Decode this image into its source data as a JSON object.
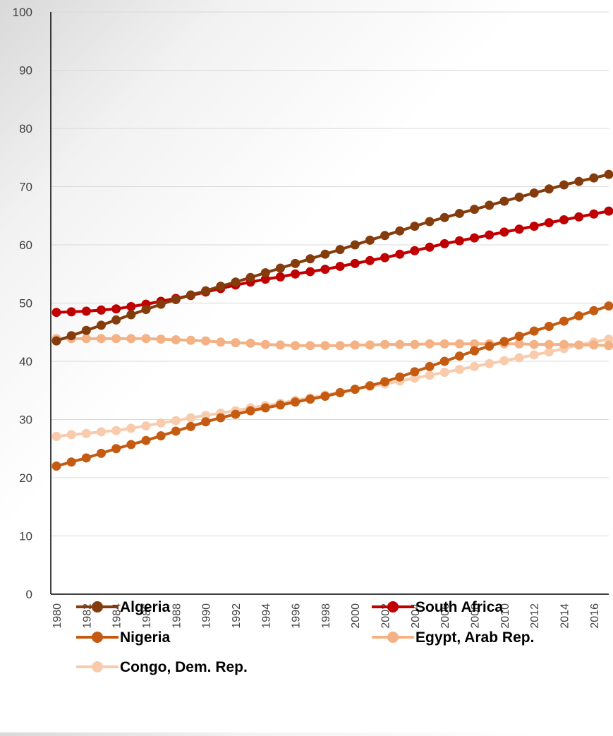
{
  "chart_data": {
    "type": "line",
    "title": "",
    "xlabel": "",
    "ylabel": "",
    "ylim": [
      0,
      100
    ],
    "yticks": [
      0,
      10,
      20,
      30,
      40,
      50,
      60,
      70,
      80,
      90,
      100
    ],
    "xlim": [
      1980,
      2017
    ],
    "xtick_labels": [
      "1980",
      "1982",
      "1984",
      "1986",
      "1988",
      "1990",
      "1992",
      "1994",
      "1996",
      "1998",
      "2000",
      "2002",
      "2004",
      "2006",
      "2008",
      "2010",
      "2012",
      "2014",
      "2016"
    ],
    "grid": true,
    "legend_position": "bottom",
    "x": [
      1980,
      1981,
      1982,
      1983,
      1984,
      1985,
      1986,
      1987,
      1988,
      1989,
      1990,
      1991,
      1992,
      1993,
      1994,
      1995,
      1996,
      1997,
      1998,
      1999,
      2000,
      2001,
      2002,
      2003,
      2004,
      2005,
      2006,
      2007,
      2008,
      2009,
      2010,
      2011,
      2012,
      2013,
      2014,
      2015,
      2016,
      2017
    ],
    "series": [
      {
        "name": "Algeria",
        "color": "#843C0C",
        "values": [
          43.5,
          44.4,
          45.3,
          46.2,
          47.1,
          48.0,
          48.9,
          49.8,
          50.6,
          51.4,
          52.1,
          52.9,
          53.6,
          54.4,
          55.2,
          56.0,
          56.8,
          57.6,
          58.4,
          59.2,
          60.0,
          60.8,
          61.6,
          62.4,
          63.2,
          64.0,
          64.7,
          65.4,
          66.1,
          66.8,
          67.5,
          68.2,
          68.9,
          69.6,
          70.3,
          70.9,
          71.5,
          72.1
        ]
      },
      {
        "name": "South Africa",
        "color": "#C00000",
        "values": [
          48.4,
          48.5,
          48.6,
          48.8,
          49.0,
          49.4,
          49.8,
          50.3,
          50.8,
          51.3,
          51.9,
          52.5,
          53.1,
          53.6,
          54.1,
          54.5,
          55.0,
          55.4,
          55.8,
          56.3,
          56.8,
          57.3,
          57.8,
          58.4,
          59.0,
          59.6,
          60.2,
          60.7,
          61.2,
          61.7,
          62.2,
          62.7,
          63.2,
          63.8,
          64.3,
          64.8,
          65.3,
          65.8
        ]
      },
      {
        "name": "Nigeria",
        "color": "#C55A11",
        "values": [
          22.0,
          22.7,
          23.4,
          24.2,
          25.0,
          25.7,
          26.4,
          27.2,
          28.0,
          28.8,
          29.6,
          30.3,
          30.9,
          31.5,
          32.0,
          32.5,
          33.0,
          33.5,
          34.0,
          34.6,
          35.2,
          35.8,
          36.5,
          37.3,
          38.2,
          39.1,
          40.0,
          40.9,
          41.8,
          42.6,
          43.4,
          44.3,
          45.2,
          46.0,
          46.9,
          47.8,
          48.7,
          49.5
        ]
      },
      {
        "name": "Egypt, Arab Rep.",
        "color": "#F4B183",
        "values": [
          43.9,
          43.9,
          43.9,
          43.9,
          43.9,
          43.9,
          43.9,
          43.8,
          43.7,
          43.6,
          43.5,
          43.3,
          43.2,
          43.1,
          42.9,
          42.8,
          42.7,
          42.7,
          42.7,
          42.7,
          42.8,
          42.8,
          42.9,
          42.9,
          42.9,
          43.0,
          43.0,
          43.0,
          43.0,
          43.0,
          43.0,
          43.0,
          42.9,
          42.9,
          42.9,
          42.8,
          42.8,
          42.7
        ]
      },
      {
        "name": "Congo, Dem. Rep.",
        "color": "#F8CBAD",
        "values": [
          27.1,
          27.4,
          27.6,
          27.9,
          28.1,
          28.5,
          28.9,
          29.4,
          29.8,
          30.3,
          30.7,
          31.1,
          31.5,
          32.0,
          32.4,
          32.8,
          33.3,
          33.7,
          34.2,
          34.7,
          35.2,
          35.7,
          36.1,
          36.6,
          37.1,
          37.6,
          38.1,
          38.6,
          39.1,
          39.6,
          40.1,
          40.6,
          41.1,
          41.6,
          42.2,
          42.8,
          43.3,
          43.8
        ]
      }
    ]
  }
}
